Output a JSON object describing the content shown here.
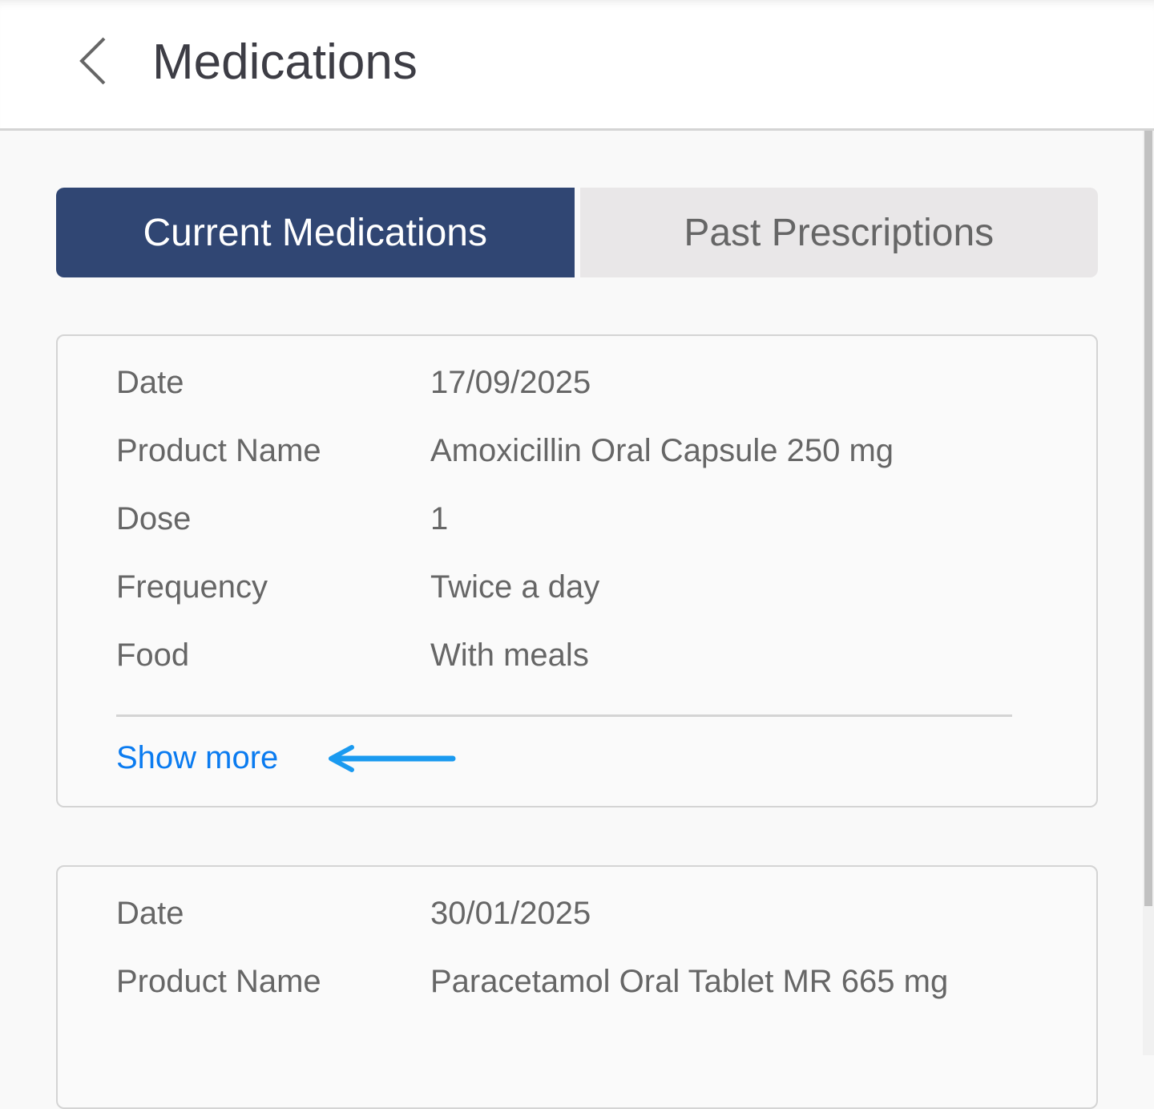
{
  "header": {
    "title": "Medications",
    "back_icon": "chevron-left-icon"
  },
  "tabs": [
    {
      "label": "Current Medications",
      "active": true
    },
    {
      "label": "Past Prescriptions",
      "active": false
    }
  ],
  "colors": {
    "tab_active": "#304673",
    "link": "#0a7bf0",
    "annotation_arrow": "#1a9af0"
  },
  "cards": [
    {
      "rows": [
        {
          "label": "Date",
          "value": "17/09/2025"
        },
        {
          "label": "Product Name",
          "value": "Amoxicillin Oral Capsule 250 mg"
        },
        {
          "label": "Dose",
          "value": "1"
        },
        {
          "label": "Frequency",
          "value": "Twice a day"
        },
        {
          "label": "Food",
          "value": "With meals"
        }
      ],
      "show_more": "Show more"
    },
    {
      "rows": [
        {
          "label": "Date",
          "value": "30/01/2025"
        },
        {
          "label": "Product Name",
          "value": "Paracetamol Oral Tablet MR 665 mg"
        }
      ]
    }
  ]
}
